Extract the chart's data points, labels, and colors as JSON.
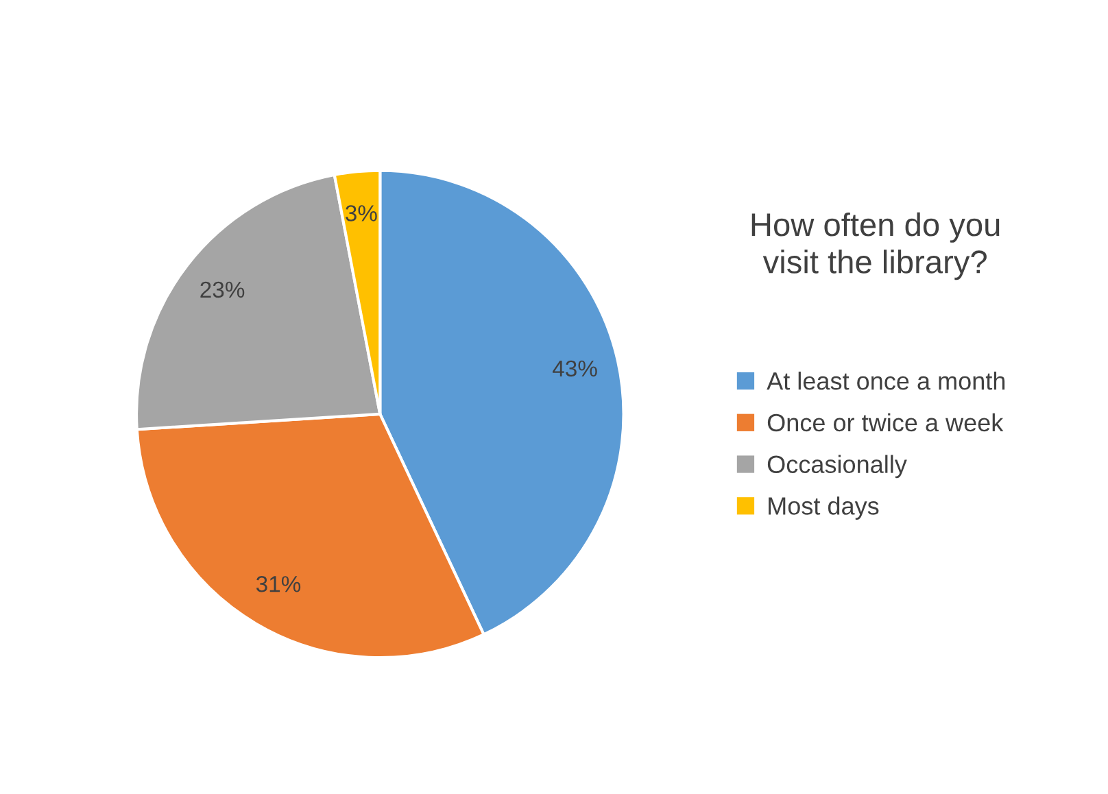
{
  "chart_data": {
    "type": "pie",
    "title": "How often do you\nvisit the library?",
    "categories": [
      "At least once a month",
      "Once or twice a week",
      "Occasionally",
      "Most days"
    ],
    "values": [
      43,
      31,
      23,
      3
    ],
    "colors": [
      "#5b9bd5",
      "#ed7d31",
      "#a5a5a5",
      "#ffc000"
    ],
    "value_labels": [
      "43%",
      "31%",
      "23%",
      "3%"
    ],
    "legend": "right"
  }
}
